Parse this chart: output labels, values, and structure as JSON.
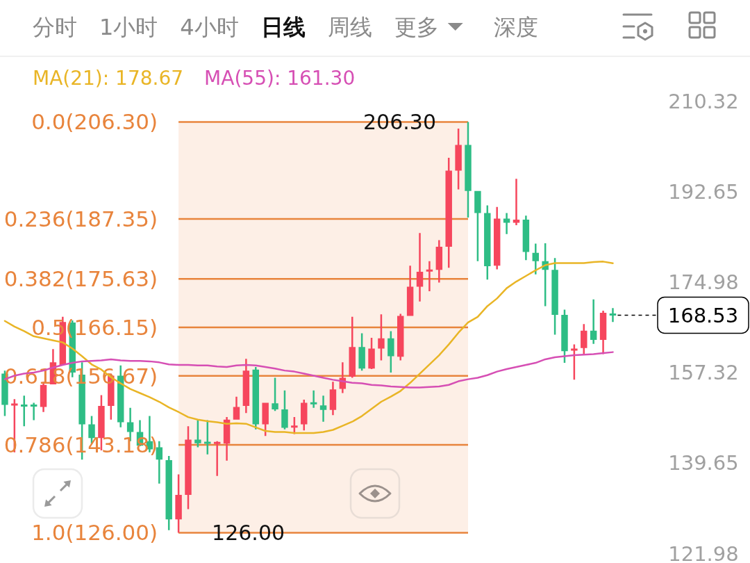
{
  "chart_data": {
    "type": "candlestick",
    "annotations": [
      "分时 1小时 4小时 **日线** 周线 更多 深度",
      {
        "text": "206.30",
        "y": 206.3
      },
      {
        "text": "126.00",
        "y": 126.0
      }
    ],
    "categories": [
      null,
      null,
      null,
      null,
      null,
      null,
      null,
      null,
      null,
      null,
      null,
      null,
      null,
      null,
      null,
      null,
      null,
      null,
      null,
      null,
      null,
      null,
      null,
      null,
      null,
      null,
      null,
      null,
      null,
      null,
      null,
      null,
      null,
      null,
      null,
      null,
      null,
      null,
      null,
      null,
      null,
      null,
      null,
      null,
      null,
      null,
      null,
      null,
      null,
      null,
      null,
      null,
      null,
      null,
      null,
      null,
      null,
      null,
      null,
      null,
      null,
      null,
      null,
      null
    ],
    "ohlc": [
      [
        157.1,
        157.7,
        148.8,
        151.0
      ],
      [
        150.9,
        152.1,
        141.7,
        151.2
      ],
      [
        150.9,
        152.8,
        146.8,
        150.8
      ],
      [
        150.9,
        151.4,
        148.0,
        150.8
      ],
      [
        150.6,
        155.5,
        149.6,
        154.9
      ],
      [
        155.0,
        161.9,
        155.0,
        159.3
      ],
      [
        158.8,
        168.2,
        158.8,
        167.2
      ],
      [
        167.1,
        167.5,
        156.4,
        157.3
      ],
      [
        156.9,
        159.3,
        140.3,
        147.2
      ],
      [
        147.2,
        148.8,
        143.4,
        144.5
      ],
      [
        144.5,
        152.9,
        142.1,
        150.8
      ],
      [
        150.8,
        157.1,
        148.1,
        156.7
      ],
      [
        156.7,
        158.7,
        146.6,
        147.6
      ],
      [
        147.6,
        150.4,
        143.9,
        145.7
      ],
      [
        145.7,
        148.0,
        142.9,
        143.0
      ],
      [
        143.9,
        148.8,
        141.7,
        142.3
      ],
      [
        142.7,
        143.9,
        135.6,
        140.3
      ],
      [
        140.2,
        141.0,
        126.5,
        128.6
      ],
      [
        128.6,
        137.4,
        126.0,
        133.4
      ],
      [
        133.4,
        146.8,
        130.6,
        144.2
      ],
      [
        144.2,
        148.0,
        142.7,
        143.5
      ],
      [
        143.8,
        148.0,
        141.3,
        143.4
      ],
      [
        143.4,
        143.9,
        137.1,
        143.7
      ],
      [
        143.4,
        148.6,
        140.1,
        148.1
      ],
      [
        148.1,
        152.6,
        148.1,
        150.6
      ],
      [
        150.8,
        160.0,
        149.4,
        157.7
      ],
      [
        157.9,
        158.4,
        146.2,
        147.2
      ],
      [
        147.2,
        151.4,
        144.9,
        151.4
      ],
      [
        151.3,
        156.3,
        149.8,
        150.1
      ],
      [
        150.1,
        153.8,
        146.2,
        146.5
      ],
      [
        146.6,
        148.6,
        145.3,
        146.9
      ],
      [
        147.2,
        152.0,
        146.0,
        151.4
      ],
      [
        151.4,
        153.8,
        150.4,
        151.2
      ],
      [
        150.9,
        152.8,
        147.7,
        150.0
      ],
      [
        150.0,
        155.5,
        149.0,
        154.0
      ],
      [
        154.1,
        159.3,
        153.3,
        156.3
      ],
      [
        156.5,
        168.2,
        156.3,
        162.3
      ],
      [
        162.3,
        165.0,
        157.7,
        158.1
      ],
      [
        158.1,
        164.1,
        158.0,
        162.0
      ],
      [
        162.0,
        168.7,
        159.7,
        164.0
      ],
      [
        164.0,
        165.4,
        157.3,
        160.5
      ],
      [
        160.4,
        168.8,
        159.7,
        168.4
      ],
      [
        168.4,
        178.2,
        168.4,
        174.1
      ],
      [
        174.1,
        184.6,
        171.2,
        177.0
      ],
      [
        177.1,
        179.1,
        173.2,
        177.4
      ],
      [
        177.4,
        183.2,
        174.9,
        181.9
      ],
      [
        181.9,
        199.3,
        177.8,
        196.8
      ],
      [
        196.8,
        205.0,
        193.1,
        201.8
      ],
      [
        201.8,
        206.3,
        187.6,
        192.8
      ],
      [
        192.8,
        192.8,
        179.1,
        188.5
      ],
      [
        188.5,
        190.0,
        175.5,
        178.1
      ],
      [
        178.2,
        189.7,
        177.5,
        187.4
      ],
      [
        187.4,
        188.5,
        184.4,
        186.6
      ],
      [
        186.6,
        195.2,
        186.1,
        187.2
      ],
      [
        187.2,
        188.0,
        179.3,
        180.9
      ],
      [
        180.7,
        182.5,
        176.5,
        179.1
      ],
      [
        179.1,
        182.6,
        170.3,
        177.4
      ],
      [
        177.4,
        179.7,
        164.7,
        168.6
      ],
      [
        168.6,
        169.6,
        159.2,
        161.5
      ],
      [
        161.6,
        162.8,
        155.9,
        162.0
      ],
      [
        162.1,
        166.8,
        160.8,
        165.5
      ],
      [
        165.5,
        171.6,
        162.9,
        163.7
      ],
      [
        163.7,
        169.4,
        160.9,
        169.0
      ],
      [
        168.8,
        169.9,
        167.2,
        168.53
      ]
    ],
    "colors": [
      "#2ebd85",
      "#f6465d",
      "#2ebd85",
      "#2ebd85",
      "#f6465d",
      "#f6465d",
      "#f6465d",
      "#2ebd85",
      "#2ebd85",
      "#2ebd85",
      "#f6465d",
      "#f6465d",
      "#2ebd85",
      "#2ebd85",
      "#2ebd85",
      "#2ebd85",
      "#2ebd85",
      "#2ebd85",
      "#f6465d",
      "#f6465d",
      "#2ebd85",
      "#2ebd85",
      "#f6465d",
      "#f6465d",
      "#f6465d",
      "#f6465d",
      "#2ebd85",
      "#f6465d",
      "#2ebd85",
      "#2ebd85",
      "#f6465d",
      "#f6465d",
      "#2ebd85",
      "#2ebd85",
      "#f6465d",
      "#f6465d",
      "#f6465d",
      "#2ebd85",
      "#f6465d",
      "#f6465d",
      "#2ebd85",
      "#f6465d",
      "#f6465d",
      "#f6465d",
      "#f6465d",
      "#f6465d",
      "#f6465d",
      "#f6465d",
      "#2ebd85",
      "#2ebd85",
      "#2ebd85",
      "#f6465d",
      "#2ebd85",
      "#f6465d",
      "#2ebd85",
      "#2ebd85",
      "#2ebd85",
      "#2ebd85",
      "#2ebd85",
      "#f6465d",
      "#f6465d",
      "#2ebd85",
      "#f6465d",
      "#2ebd85"
    ],
    "series": [
      {
        "type": "line",
        "name": "MA(21): 178.67",
        "color": "#e9b526",
        "values": [
          167.4,
          166.3,
          165.4,
          164.4,
          164.0,
          163.6,
          163.2,
          162.0,
          160.5,
          158.9,
          157.9,
          156.4,
          155.2,
          154.1,
          153.3,
          152.5,
          151.6,
          150.5,
          149.6,
          148.6,
          148.1,
          147.8,
          147.6,
          147.3,
          147.4,
          147.3,
          146.6,
          145.9,
          145.7,
          145.7,
          145.5,
          145.5,
          145.5,
          145.7,
          146.1,
          146.9,
          147.7,
          148.8,
          150.2,
          151.6,
          152.6,
          153.7,
          155.3,
          157.1,
          158.9,
          160.7,
          162.8,
          165.1,
          167.1,
          168.2,
          170.3,
          171.8,
          173.8,
          175.1,
          176.2,
          177.3,
          178.3,
          178.7,
          178.7,
          178.7,
          178.7,
          178.9,
          179.0,
          178.67
        ]
      },
      {
        "type": "line",
        "name": "MA(55): 161.30",
        "color": "#d64fb4",
        "values": [
          156.0,
          156.7,
          157.1,
          157.3,
          157.7,
          158.3,
          158.8,
          159.2,
          159.5,
          159.6,
          159.7,
          159.9,
          159.7,
          159.6,
          159.6,
          159.5,
          159.3,
          158.9,
          158.8,
          158.8,
          158.7,
          158.7,
          158.5,
          158.4,
          158.7,
          158.8,
          158.7,
          158.4,
          158.1,
          157.7,
          157.5,
          157.1,
          156.7,
          156.3,
          155.9,
          155.6,
          155.3,
          155.2,
          154.9,
          154.8,
          154.6,
          154.5,
          154.4,
          154.4,
          154.5,
          154.6,
          154.9,
          155.6,
          156.0,
          156.3,
          156.8,
          157.5,
          158.0,
          158.4,
          158.8,
          159.2,
          159.9,
          160.3,
          160.5,
          160.7,
          160.8,
          160.9,
          161.1,
          161.3
        ]
      }
    ],
    "ylim": [
      121.98,
      219
    ],
    "yticks": [
      210.32,
      192.65,
      174.98,
      157.32,
      139.65,
      121.98
    ],
    "tick_labels": "y",
    "bands": [
      {
        "axis": "y",
        "from": 126.0,
        "to": 206.3,
        "color": "#fdefe6"
      }
    ],
    "ref_lines": [
      {
        "axis": "y",
        "value": 206.3,
        "label": "0.0(206.30)",
        "color": "#e8843c"
      },
      {
        "axis": "y",
        "value": 187.35,
        "label": "0.236(187.35)",
        "color": "#e8843c"
      },
      {
        "axis": "y",
        "value": 175.63,
        "label": "0.382(175.63)",
        "color": "#e8843c"
      },
      {
        "axis": "y",
        "value": 166.15,
        "label": "0.5(166.15)",
        "color": "#e8843c"
      },
      {
        "axis": "y",
        "value": 156.67,
        "label": "0.618(156.67)",
        "color": "#e8843c"
      },
      {
        "axis": "y",
        "value": 143.18,
        "label": "0.786(143.18)",
        "color": "#e8843c"
      },
      {
        "axis": "y",
        "value": 126.0,
        "label": "1.0(126.00)",
        "color": "#e8843c"
      },
      {
        "axis": "y",
        "value": 168.53,
        "label": "168.53",
        "color": "#000000",
        "line_style": "dashed"
      }
    ]
  }
}
